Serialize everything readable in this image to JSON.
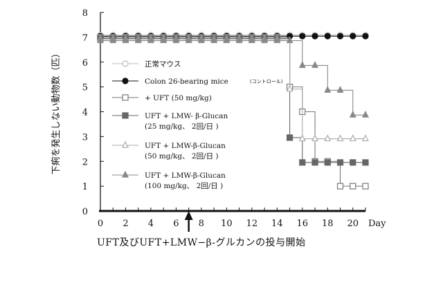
{
  "chart_data": {
    "type": "line",
    "ylabel": "下痢を発生しない動物数（匹）",
    "xlabel": "Day",
    "xlim": [
      0,
      21
    ],
    "ylim": [
      0,
      8
    ],
    "x_ticks": [
      0,
      2,
      4,
      6,
      8,
      10,
      12,
      14,
      16,
      18,
      20
    ],
    "y_ticks": [
      0,
      1,
      2,
      3,
      4,
      5,
      6,
      7,
      8
    ],
    "annotation": "UFT及びUFT+LMW−β-グルカンの投与開始",
    "annotation_day": 7,
    "legend_position": "left",
    "series": [
      {
        "name": "正常マウス",
        "marker": "open-circle",
        "color": "#bbbbbb",
        "x": [
          0,
          1,
          2,
          3,
          4,
          5,
          6,
          7,
          8,
          9,
          10,
          11,
          12,
          13,
          14,
          15,
          16,
          17,
          18,
          19,
          20,
          21
        ],
        "y": [
          7,
          7,
          7,
          7,
          7,
          7,
          7,
          7,
          7,
          7,
          7,
          7,
          7,
          7,
          7,
          7,
          7,
          7,
          7,
          7,
          7,
          7
        ]
      },
      {
        "name": "Colon 26-bearing mice",
        "name_note": "(コントロール)",
        "marker": "filled-circle",
        "color": "#111111",
        "x": [
          0,
          1,
          2,
          3,
          4,
          5,
          6,
          7,
          8,
          9,
          10,
          11,
          12,
          13,
          14,
          15,
          16,
          17,
          18,
          19,
          20,
          21
        ],
        "y": [
          7,
          7,
          7,
          7,
          7,
          7,
          7,
          7,
          7,
          7,
          7,
          7,
          7,
          7,
          7,
          7,
          7,
          7,
          7,
          7,
          7,
          7
        ]
      },
      {
        "name": "+ UFT (50 mg/kg)",
        "marker": "open-square",
        "color": "#777777",
        "x": [
          0,
          1,
          2,
          3,
          4,
          5,
          6,
          7,
          8,
          9,
          10,
          11,
          12,
          13,
          14,
          15,
          16,
          17,
          18,
          19,
          20,
          21
        ],
        "y": [
          7,
          7,
          7,
          7,
          7,
          7,
          7,
          7,
          7,
          7,
          7,
          7,
          7,
          7,
          7,
          5,
          4,
          2,
          2,
          1,
          1,
          1
        ]
      },
      {
        "name": "UFT + LMW- β-Glucan",
        "name_line2": "(25 mg/kg、 2回/日 )",
        "marker": "filled-square",
        "color": "#666666",
        "x": [
          0,
          1,
          2,
          3,
          4,
          5,
          6,
          7,
          8,
          9,
          10,
          11,
          12,
          13,
          14,
          15,
          16,
          17,
          18,
          19,
          20,
          21
        ],
        "y": [
          7,
          7,
          7,
          7,
          7,
          7,
          7,
          7,
          7,
          7,
          7,
          7,
          7,
          7,
          7,
          3,
          2,
          2,
          2,
          2,
          2,
          2
        ]
      },
      {
        "name": "UFT + LMW-β-Glucan",
        "name_line2": "(50 mg/kg、 2回/日 )",
        "marker": "open-triangle",
        "color": "#aaaaaa",
        "x": [
          0,
          1,
          2,
          3,
          4,
          5,
          6,
          7,
          8,
          9,
          10,
          11,
          12,
          13,
          14,
          15,
          16,
          17,
          18,
          19,
          20,
          21
        ],
        "y": [
          7,
          7,
          7,
          7,
          7,
          7,
          7,
          7,
          7,
          7,
          7,
          7,
          7,
          7,
          7,
          5,
          3,
          3,
          3,
          3,
          3,
          3
        ]
      },
      {
        "name": "UFT + LMW-β-Glucan",
        "name_line2": "(100 mg/kg、 2回/日 )",
        "marker": "filled-triangle",
        "color": "#888888",
        "x": [
          0,
          1,
          2,
          3,
          4,
          5,
          6,
          7,
          8,
          9,
          10,
          11,
          12,
          13,
          14,
          15,
          16,
          17,
          18,
          19,
          20,
          21
        ],
        "y": [
          7,
          7,
          7,
          7,
          7,
          7,
          7,
          7,
          7,
          7,
          7,
          7,
          7,
          7,
          7,
          7,
          6,
          6,
          5,
          5,
          4,
          4
        ]
      }
    ]
  }
}
